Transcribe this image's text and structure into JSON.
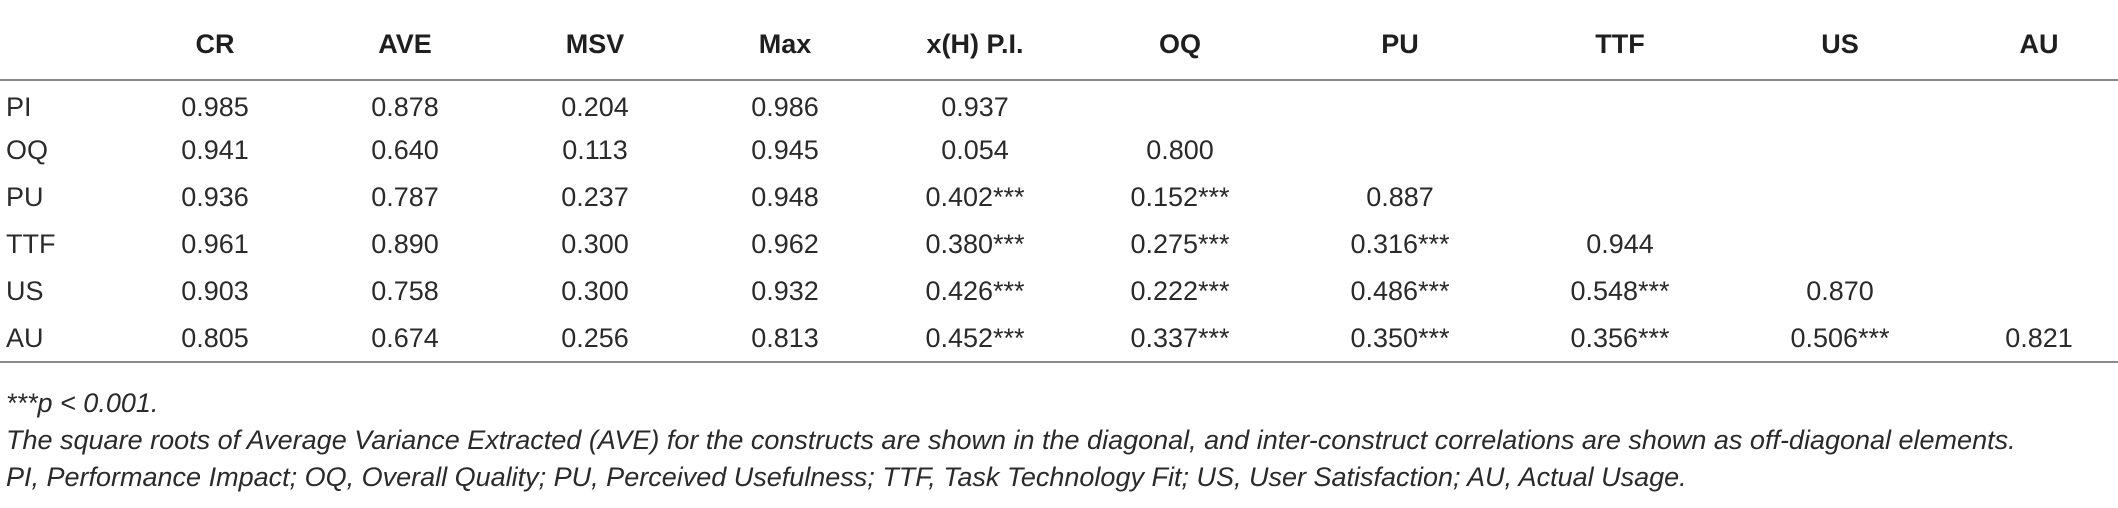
{
  "table": {
    "headers": [
      "",
      "CR",
      "AVE",
      "MSV",
      "Max",
      "x(H) P.I.",
      "OQ",
      "PU",
      "TTF",
      "US",
      "AU"
    ],
    "rows": [
      [
        "PI",
        "0.985",
        "0.878",
        "0.204",
        "0.986",
        "0.937",
        "",
        "",
        "",
        "",
        ""
      ],
      [
        "OQ",
        "0.941",
        "0.640",
        "0.113",
        "0.945",
        "0.054",
        "0.800",
        "",
        "",
        "",
        ""
      ],
      [
        "PU",
        "0.936",
        "0.787",
        "0.237",
        "0.948",
        "0.402***",
        "0.152***",
        "0.887",
        "",
        "",
        ""
      ],
      [
        "TTF",
        "0.961",
        "0.890",
        "0.300",
        "0.962",
        "0.380***",
        "0.275***",
        "0.316***",
        "0.944",
        "",
        ""
      ],
      [
        "US",
        "0.903",
        "0.758",
        "0.300",
        "0.932",
        "0.426***",
        "0.222***",
        "0.486***",
        "0.548***",
        "0.870",
        ""
      ],
      [
        "AU",
        "0.805",
        "0.674",
        "0.256",
        "0.813",
        "0.452***",
        "0.337***",
        "0.350***",
        "0.356***",
        "0.506***",
        "0.821"
      ]
    ]
  },
  "notes": [
    "***p < 0.001.",
    "The square roots of Average Variance Extracted (AVE) for the constructs are shown in the diagonal, and inter-construct correlations are shown as off-diagonal elements.",
    "PI, Performance Impact; OQ, Overall Quality; PU, Perceived Usefulness; TTF, Task Technology Fit; US, User Satisfaction; AU, Actual Usage."
  ]
}
